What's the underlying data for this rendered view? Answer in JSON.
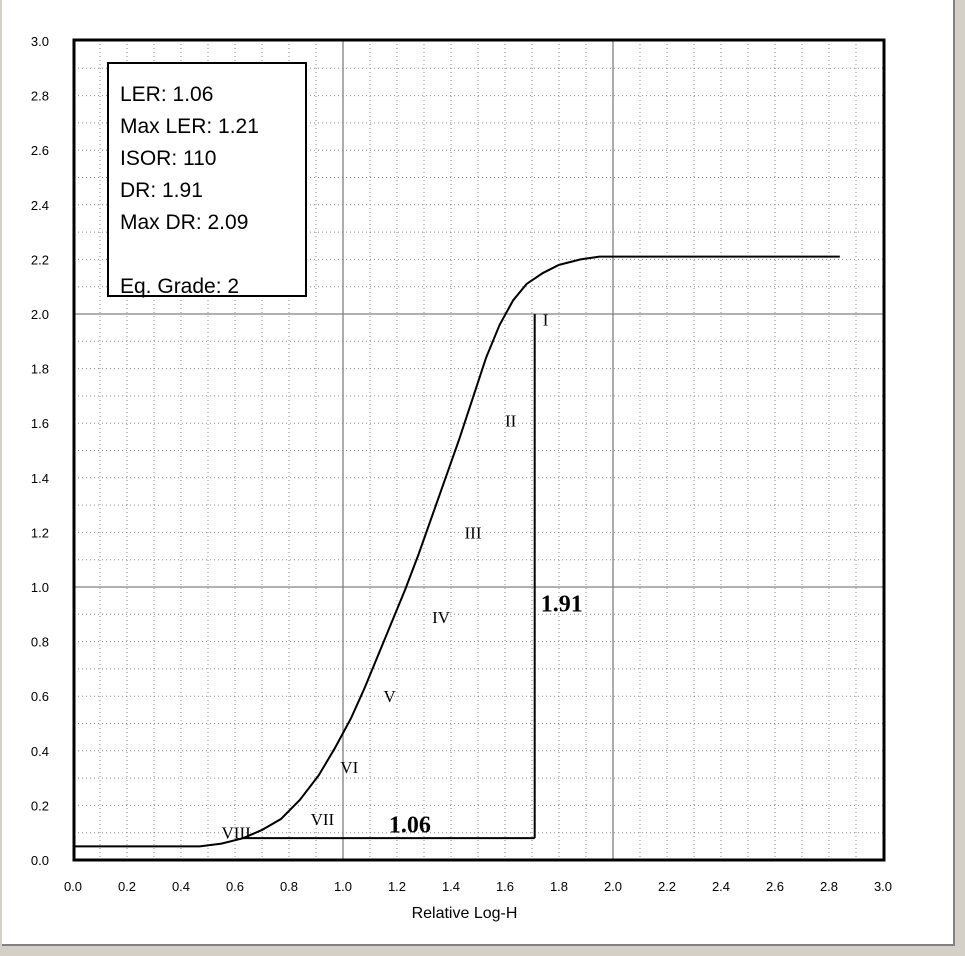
{
  "chart_data": {
    "type": "line",
    "xlabel": "Relative Log-H",
    "ylabel": "",
    "xlim": [
      0,
      3
    ],
    "ylim": [
      0,
      3
    ],
    "x_ticks": [
      "0.0",
      "0.2",
      "0.4",
      "0.6",
      "0.8",
      "1.0",
      "1.2",
      "1.4",
      "1.6",
      "1.8",
      "2.0",
      "2.2",
      "2.4",
      "2.6",
      "2.8",
      "3.0"
    ],
    "y_ticks": [
      "0.0",
      "0.2",
      "0.4",
      "0.6",
      "0.8",
      "1.0",
      "1.2",
      "1.4",
      "1.6",
      "1.8",
      "2.0",
      "2.2",
      "2.4",
      "2.6",
      "2.8",
      "3.0"
    ],
    "grid": true,
    "series": [
      {
        "x": [
          0.0,
          0.47,
          0.55,
          0.63,
          0.7,
          0.77,
          0.84,
          0.91,
          0.97,
          1.03,
          1.08,
          1.13,
          1.18,
          1.23,
          1.28,
          1.33,
          1.38,
          1.43,
          1.48,
          1.53,
          1.58,
          1.63,
          1.68,
          1.74,
          1.8,
          1.88,
          1.95,
          2.02,
          2.84
        ],
        "y": [
          0.05,
          0.05,
          0.06,
          0.08,
          0.11,
          0.15,
          0.22,
          0.31,
          0.41,
          0.52,
          0.63,
          0.75,
          0.87,
          0.99,
          1.12,
          1.26,
          1.4,
          1.54,
          1.69,
          1.84,
          1.96,
          2.05,
          2.11,
          2.15,
          2.18,
          2.2,
          2.21,
          2.21,
          2.21
        ]
      }
    ],
    "annotations": [
      {
        "text": "I",
        "x": 1.74,
        "y": 1.98
      },
      {
        "text": "II",
        "x": 1.6,
        "y": 1.61
      },
      {
        "text": "III",
        "x": 1.45,
        "y": 1.2
      },
      {
        "text": "IV",
        "x": 1.33,
        "y": 0.89
      },
      {
        "text": "V",
        "x": 1.15,
        "y": 0.6
      },
      {
        "text": "VI",
        "x": 0.99,
        "y": 0.34
      },
      {
        "text": "VII",
        "x": 0.88,
        "y": 0.15
      },
      {
        "text": "VIII",
        "x": 0.55,
        "y": 0.1
      }
    ],
    "dr_marker": {
      "x": 1.71,
      "y_top": 2.0,
      "y_base": 0.08,
      "x_start": 0.63,
      "label": "1.91"
    },
    "ler_label": "1.06",
    "info_box": [
      {
        "label": "LER:",
        "value": "1.06"
      },
      {
        "label": "Max LER:",
        "value": "1.21"
      },
      {
        "label": "ISOR:",
        "value": "110"
      },
      {
        "label": "DR:",
        "value": "1.91"
      },
      {
        "label": "Max DR:",
        "value": "2.09"
      },
      {
        "label": "",
        "value": ""
      },
      {
        "label": "Eq. Grade:",
        "value": "2"
      }
    ]
  }
}
